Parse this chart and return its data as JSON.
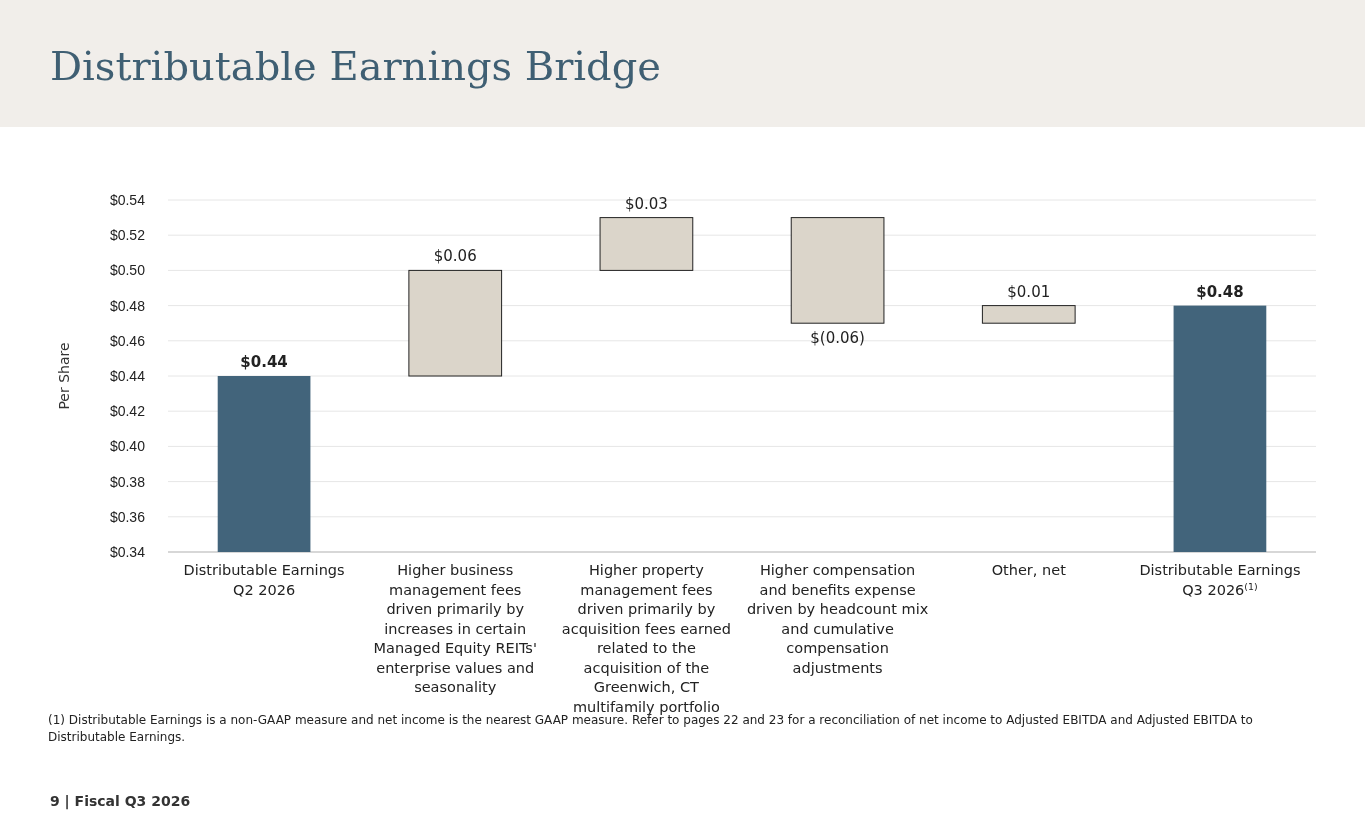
{
  "chart_data": {
    "type": "bar",
    "title": "Distributable Earnings Bridge",
    "ylabel": "Per Share",
    "categories": [
      "Distributable Earnings Q2 2026",
      "Higher business management fees driven primarily by increases in certain Managed Equity REITs' enterprise values and seasonality",
      "Higher property management fees driven primarily by acquisition fees earned related to the acquisition of the Greenwich, CT multifamily portfolio",
      "Higher compensation and benefits expense driven by headcount mix and cumulative compensation adjustments",
      "Other, net",
      "Distributable Earnings Q3 2026$^{(1)}$"
    ],
    "values": [
      0.44,
      0.06,
      0.03,
      -0.06,
      0.01,
      0.48
    ],
    "base": [
      null,
      0.44,
      0.5,
      0.53,
      0.47,
      null
    ],
    "colors": [
      "#42647b",
      "#dbd5ca",
      "#dbd5ca",
      "#dbd5ca",
      "#dbd5ca",
      "#42647b"
    ],
    "value_labels": [
      "$0.44",
      "$0.06",
      "$0.03",
      "$(0.06)",
      "$0.01",
      "$0.48"
    ],
    "ylim": [
      0.34,
      0.54
    ],
    "yticks": [
      {
        "value": 0.34,
        "label": "$0.34"
      },
      {
        "value": 0.36,
        "label": "$0.36"
      },
      {
        "value": 0.38,
        "label": "$0.38"
      },
      {
        "value": 0.4,
        "label": "$0.40"
      },
      {
        "value": 0.42,
        "label": "$0.42"
      },
      {
        "value": 0.44,
        "label": "$0.44"
      },
      {
        "value": 0.46,
        "label": "$0.46"
      },
      {
        "value": 0.48,
        "label": "$0.48"
      },
      {
        "value": 0.5,
        "label": "$0.50"
      },
      {
        "value": 0.52,
        "label": "$0.52"
      },
      {
        "value": 0.54,
        "label": "$0.54"
      }
    ],
    "grid": "y",
    "annotations": [
      "(1) Distributable Earnings is a non-GAAP measure and net income is the nearest GAAP measure. Refer to pages 22 and 23 for a reconciliation of net income to Adjusted EBITDA and Adjusted EBITDA to Distributable Earnings.",
      "9 | Fiscal Q3 2026"
    ]
  }
}
